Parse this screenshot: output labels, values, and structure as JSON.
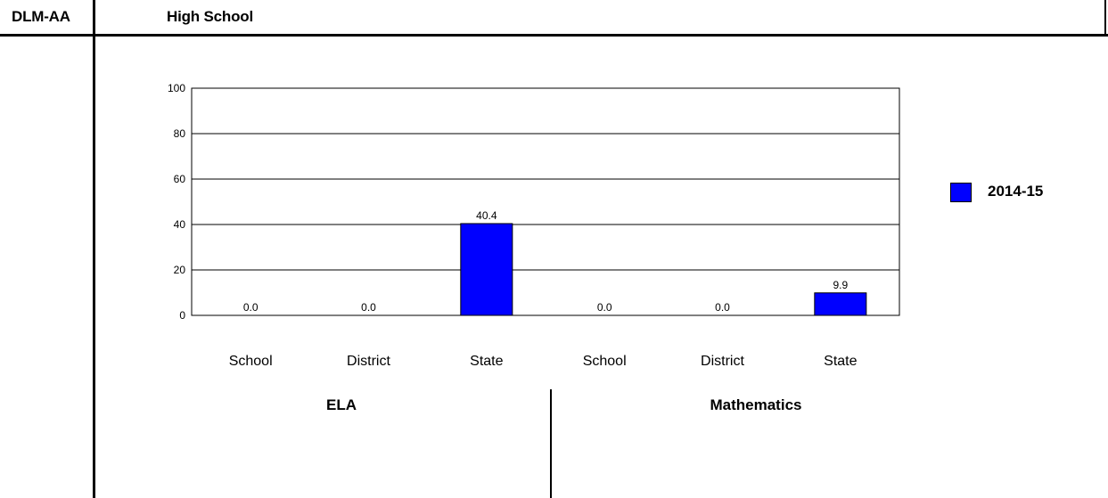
{
  "header": {
    "left_label": "DLM-AA",
    "title": "High School"
  },
  "groups": [
    "ELA",
    "Mathematics"
  ],
  "legend": {
    "label": "2014-15",
    "color": "#0000ff"
  },
  "chart_data": {
    "type": "bar",
    "title": "",
    "xlabel": "",
    "ylabel": "",
    "ylim": [
      0,
      100
    ],
    "yticks": [
      0,
      20,
      40,
      60,
      80,
      100
    ],
    "grid": true,
    "legend_position": "right",
    "categories": [
      "School",
      "District",
      "State",
      "School",
      "District",
      "State"
    ],
    "category_groups": [
      "ELA",
      "ELA",
      "ELA",
      "Mathematics",
      "Mathematics",
      "Mathematics"
    ],
    "series": [
      {
        "name": "2014-15",
        "color": "#0000ff",
        "values": [
          0.0,
          0.0,
          40.4,
          0.0,
          0.0,
          9.9
        ],
        "labels": [
          "0.0",
          "0.0",
          "40.4",
          "0.0",
          "0.0",
          "9.9"
        ]
      }
    ]
  }
}
